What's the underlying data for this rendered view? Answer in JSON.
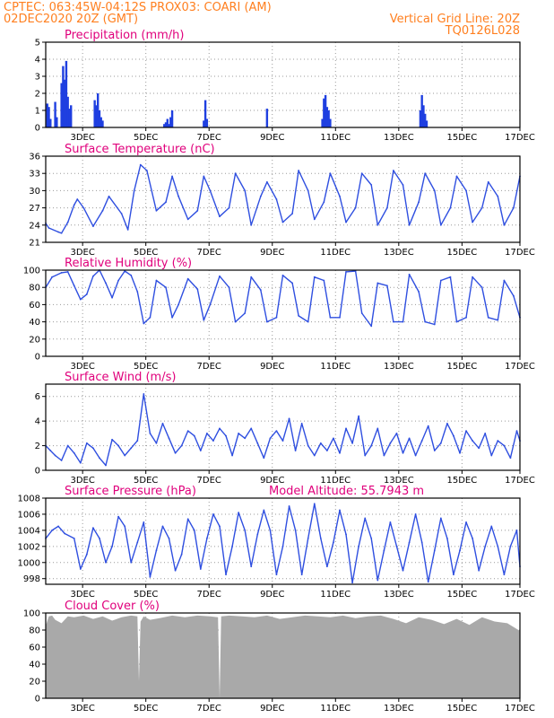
{
  "header": {
    "line1": "CPTEC:   063:45W-04:12S  PROX03: COARI (AM)",
    "line2": "02DEC2020 20Z (GMT)",
    "grid_note": "Vertical Grid Line: 20Z",
    "run_id": "TQ0126L028"
  },
  "colors": {
    "header": "#ff7f1f",
    "title": "#e0007c",
    "line": "#2f4fe0",
    "bar": "#1f3fe0",
    "cloud": "#a9a9a9",
    "grid": "#9a9a9a"
  },
  "x_axis": {
    "range_days": [
      0,
      15
    ],
    "tick_labels": [
      "3DEC",
      "5DEC",
      "7DEC",
      "9DEC",
      "11DEC",
      "13DEC",
      "15DEC",
      "17DEC"
    ],
    "tick_days": [
      1.167,
      3.167,
      5.167,
      7.167,
      9.167,
      11.167,
      13.167,
      15.0
    ]
  },
  "chart_data": [
    {
      "type": "bar",
      "title": "Precipitation (mm/h)",
      "ylim": [
        0,
        5
      ],
      "yticks": [
        "0",
        "1",
        "2",
        "3",
        "4",
        "5"
      ],
      "x_day": [
        0.05,
        0.1,
        0.15,
        0.3,
        0.35,
        0.5,
        0.55,
        0.6,
        0.65,
        0.7,
        0.75,
        0.8,
        1.55,
        1.6,
        1.65,
        1.7,
        1.75,
        1.8,
        3.75,
        3.8,
        3.85,
        3.9,
        3.95,
        4.0,
        5.0,
        5.05,
        5.1,
        7.0,
        8.75,
        8.8,
        8.85,
        8.9,
        8.95,
        9.0,
        11.85,
        11.9,
        11.95,
        12.0,
        12.05
      ],
      "values": [
        1.4,
        1.2,
        0.5,
        1.5,
        0.6,
        2.6,
        3.6,
        2.8,
        3.9,
        1.8,
        1.1,
        1.3,
        1.6,
        1.3,
        2.0,
        1.0,
        0.6,
        0.4,
        0.2,
        0.3,
        0.5,
        0.2,
        0.6,
        1.0,
        0.4,
        1.6,
        0.5,
        1.1,
        0.5,
        1.7,
        1.9,
        1.2,
        1.0,
        0.5,
        1.0,
        1.9,
        1.3,
        0.8,
        0.4
      ]
    },
    {
      "type": "line",
      "title": "Surface Temperature (nC)",
      "ylim": [
        21,
        36
      ],
      "yticks": [
        "21",
        "24",
        "27",
        "30",
        "33",
        "36"
      ],
      "x_day": [
        0.0,
        0.1,
        0.4,
        0.5,
        0.7,
        0.9,
        1.0,
        1.2,
        1.5,
        1.8,
        2.0,
        2.4,
        2.6,
        2.8,
        3.0,
        3.2,
        3.5,
        3.8,
        4.0,
        4.2,
        4.5,
        4.8,
        5.0,
        5.2,
        5.5,
        5.8,
        6.0,
        6.3,
        6.5,
        6.8,
        7.0,
        7.3,
        7.5,
        7.8,
        8.0,
        8.3,
        8.5,
        8.8,
        9.0,
        9.3,
        9.5,
        9.8,
        10.0,
        10.3,
        10.5,
        10.8,
        11.0,
        11.3,
        11.5,
        11.8,
        12.0,
        12.3,
        12.5,
        12.8,
        13.0,
        13.3,
        13.5,
        13.8,
        14.0,
        14.3,
        14.5,
        14.8,
        15.0
      ],
      "values": [
        24.3,
        23.5,
        22.8,
        22.6,
        24.5,
        27.5,
        28.5,
        27.0,
        23.8,
        26.5,
        29.0,
        26.0,
        23.2,
        30.0,
        34.5,
        33.5,
        26.5,
        28.0,
        32.5,
        29.0,
        25.0,
        26.5,
        32.5,
        30.0,
        25.5,
        27.0,
        33.0,
        30.0,
        24.0,
        29.0,
        31.5,
        28.5,
        24.5,
        26.0,
        33.5,
        30.0,
        25.0,
        28.0,
        33.0,
        29.0,
        24.5,
        27.0,
        33.0,
        31.0,
        24.0,
        27.0,
        33.5,
        31.0,
        24.0,
        28.0,
        33.0,
        30.0,
        24.0,
        27.0,
        32.5,
        30.0,
        24.5,
        27.0,
        31.5,
        29.0,
        24.0,
        27.0,
        32.5
      ]
    },
    {
      "type": "line",
      "title": "Relative Humidity (%)",
      "ylim": [
        0,
        100
      ],
      "yticks": [
        "0",
        "20",
        "40",
        "60",
        "80",
        "100"
      ],
      "x_day": [
        0.0,
        0.2,
        0.5,
        0.7,
        0.9,
        1.1,
        1.3,
        1.5,
        1.7,
        1.9,
        2.1,
        2.3,
        2.5,
        2.7,
        2.9,
        3.1,
        3.3,
        3.5,
        3.8,
        4.0,
        4.2,
        4.5,
        4.8,
        5.0,
        5.2,
        5.5,
        5.8,
        6.0,
        6.3,
        6.5,
        6.8,
        7.0,
        7.3,
        7.5,
        7.8,
        8.0,
        8.3,
        8.5,
        8.8,
        9.0,
        9.3,
        9.5,
        9.8,
        10.0,
        10.3,
        10.5,
        10.8,
        11.0,
        11.3,
        11.5,
        11.8,
        12.0,
        12.3,
        12.5,
        12.8,
        13.0,
        13.3,
        13.5,
        13.8,
        14.0,
        14.3,
        14.5,
        14.8,
        15.0
      ],
      "values": [
        80,
        92,
        97,
        98,
        82,
        66,
        72,
        93,
        100,
        85,
        68,
        88,
        99,
        94,
        75,
        38,
        45,
        88,
        80,
        45,
        60,
        90,
        78,
        42,
        60,
        93,
        80,
        40,
        50,
        92,
        77,
        40,
        45,
        94,
        85,
        47,
        40,
        92,
        88,
        45,
        45,
        98,
        99,
        50,
        35,
        85,
        82,
        40,
        40,
        95,
        75,
        40,
        37,
        88,
        92,
        40,
        45,
        92,
        80,
        45,
        42,
        88,
        70,
        45
      ]
    },
    {
      "type": "line",
      "title": "Surface Wind (m/s)",
      "ylim": [
        0,
        7
      ],
      "yticks": [
        "0",
        "2",
        "4",
        "6"
      ],
      "x_day": [
        0.0,
        0.15,
        0.3,
        0.5,
        0.7,
        0.9,
        1.1,
        1.3,
        1.5,
        1.7,
        1.9,
        2.1,
        2.3,
        2.5,
        2.7,
        2.9,
        3.1,
        3.3,
        3.5,
        3.7,
        3.9,
        4.1,
        4.3,
        4.5,
        4.7,
        4.9,
        5.1,
        5.3,
        5.5,
        5.7,
        5.9,
        6.1,
        6.3,
        6.5,
        6.7,
        6.9,
        7.1,
        7.3,
        7.5,
        7.7,
        7.9,
        8.1,
        8.3,
        8.5,
        8.7,
        8.9,
        9.1,
        9.3,
        9.5,
        9.7,
        9.9,
        10.1,
        10.3,
        10.5,
        10.7,
        10.9,
        11.1,
        11.3,
        11.5,
        11.7,
        11.9,
        12.1,
        12.3,
        12.5,
        12.7,
        12.9,
        13.1,
        13.3,
        13.5,
        13.7,
        13.9,
        14.1,
        14.3,
        14.5,
        14.7,
        14.9,
        15.0
      ],
      "values": [
        2.0,
        1.6,
        1.2,
        0.8,
        2.0,
        1.4,
        0.6,
        2.2,
        1.8,
        1.0,
        0.4,
        2.5,
        2.0,
        1.2,
        1.8,
        2.4,
        6.2,
        3.0,
        2.2,
        3.8,
        2.6,
        1.4,
        2.0,
        3.2,
        2.8,
        1.6,
        3.0,
        2.4,
        3.4,
        2.8,
        1.2,
        3.0,
        2.6,
        3.4,
        2.2,
        1.0,
        2.6,
        3.2,
        2.4,
        4.2,
        1.6,
        3.8,
        2.0,
        1.2,
        2.2,
        1.6,
        2.6,
        1.4,
        3.4,
        2.2,
        4.4,
        1.2,
        2.0,
        3.4,
        1.2,
        2.2,
        3.0,
        1.4,
        2.6,
        1.2,
        2.4,
        3.6,
        1.6,
        2.2,
        3.8,
        2.8,
        1.4,
        3.2,
        2.4,
        1.8,
        3.0,
        1.2,
        2.4,
        2.0,
        1.0,
        3.2,
        2.4
      ]
    },
    {
      "type": "line",
      "title": "Surface Pressure (hPa)",
      "annotation": "Model Altitude: 55.7943 m",
      "ylim": [
        997.3,
        1008
      ],
      "yticks": [
        "998",
        "1000",
        "1002",
        "1004",
        "1006",
        "1008"
      ],
      "x_day": [
        0.0,
        0.2,
        0.4,
        0.6,
        0.9,
        1.1,
        1.3,
        1.5,
        1.7,
        1.9,
        2.1,
        2.3,
        2.5,
        2.7,
        2.9,
        3.1,
        3.3,
        3.5,
        3.7,
        3.9,
        4.1,
        4.3,
        4.5,
        4.7,
        4.9,
        5.1,
        5.3,
        5.5,
        5.7,
        5.9,
        6.1,
        6.3,
        6.5,
        6.7,
        6.9,
        7.1,
        7.3,
        7.5,
        7.7,
        7.9,
        8.1,
        8.3,
        8.5,
        8.7,
        8.9,
        9.1,
        9.3,
        9.5,
        9.7,
        9.9,
        10.1,
        10.3,
        10.5,
        10.7,
        10.9,
        11.1,
        11.3,
        11.5,
        11.7,
        11.9,
        12.1,
        12.3,
        12.5,
        12.7,
        12.9,
        13.1,
        13.3,
        13.5,
        13.7,
        13.9,
        14.1,
        14.3,
        14.5,
        14.7,
        14.9,
        15.0
      ],
      "values": [
        1003.0,
        1004.0,
        1004.5,
        1003.6,
        1003.0,
        999.2,
        1001.0,
        1004.3,
        1003.0,
        1000.0,
        1002.0,
        1005.7,
        1004.5,
        1000.0,
        1002.5,
        1005.0,
        998.2,
        1001.5,
        1004.5,
        1003.0,
        999.0,
        1001.0,
        1005.4,
        1004.0,
        999.2,
        1003.0,
        1006.0,
        1004.5,
        998.5,
        1002.0,
        1006.2,
        1004.0,
        999.5,
        1003.5,
        1006.5,
        1004.0,
        998.5,
        1002.0,
        1007.0,
        1004.0,
        998.5,
        1003.0,
        1007.3,
        1003.0,
        999.5,
        1002.5,
        1006.5,
        1003.5,
        997.5,
        1002.0,
        1005.5,
        1003.0,
        997.8,
        1001.5,
        1005.0,
        1002.0,
        999.0,
        1002.5,
        1006.0,
        1002.5,
        997.6,
        1001.5,
        1005.5,
        1003.0,
        998.5,
        1001.5,
        1005.0,
        1003.0,
        999.0,
        1002.0,
        1004.5,
        1002.0,
        998.5,
        1002.0,
        1004.0,
        999.5
      ]
    },
    {
      "type": "area",
      "title": "Cloud Cover (%)",
      "ylim": [
        0,
        100
      ],
      "yticks": [
        "0",
        "20",
        "40",
        "60",
        "80",
        "100"
      ],
      "x_day": [
        0.0,
        0.1,
        0.2,
        0.3,
        0.5,
        0.7,
        0.9,
        1.2,
        1.5,
        1.8,
        2.1,
        2.4,
        2.7,
        2.9,
        2.95,
        3.0,
        3.1,
        3.3,
        3.6,
        4.0,
        4.4,
        4.8,
        5.2,
        5.45,
        5.5,
        5.55,
        5.8,
        6.2,
        6.6,
        7.0,
        7.4,
        7.8,
        8.2,
        8.6,
        9.0,
        9.4,
        9.8,
        10.2,
        10.6,
        11.0,
        11.4,
        11.8,
        12.2,
        12.6,
        13.0,
        13.4,
        13.8,
        14.2,
        14.6,
        15.0
      ],
      "values": [
        85,
        96,
        97,
        92,
        88,
        96,
        95,
        97,
        93,
        96,
        91,
        95,
        97,
        96,
        20,
        90,
        96,
        92,
        94,
        97,
        95,
        97,
        96,
        95,
        0,
        96,
        97,
        96,
        95,
        97,
        93,
        95,
        97,
        96,
        95,
        97,
        94,
        96,
        97,
        93,
        88,
        95,
        92,
        87,
        93,
        86,
        95,
        90,
        88,
        79
      ]
    }
  ]
}
